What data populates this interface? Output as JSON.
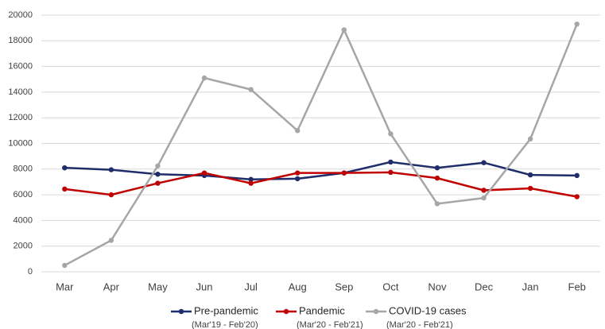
{
  "chart_data": {
    "type": "line",
    "categories": [
      "Mar",
      "Apr",
      "May",
      "Jun",
      "Jul",
      "Aug",
      "Sep",
      "Oct",
      "Nov",
      "Dec",
      "Jan",
      "Feb"
    ],
    "series": [
      {
        "name": "Pre-pandemic",
        "period": "(Mar'19 - Feb'20)",
        "color": "#1f2d6b",
        "values": [
          8100,
          7950,
          7600,
          7500,
          7200,
          7250,
          7700,
          8550,
          8100,
          8500,
          7550,
          7500
        ]
      },
      {
        "name": "Pandemic",
        "period": "(Mar'20 - Feb'21)",
        "color": "#c00000",
        "values": [
          6450,
          6000,
          6900,
          7700,
          6900,
          7700,
          7700,
          7750,
          7300,
          6350,
          6500,
          5850
        ]
      },
      {
        "name": "COVID-19 cases",
        "period": "(Mar'20 - Feb'21)",
        "color": "#a6a6a6",
        "values": [
          500,
          2450,
          8250,
          15100,
          14200,
          11000,
          18850,
          10750,
          5300,
          5750,
          10350,
          19300
        ]
      }
    ],
    "ylim": [
      0,
      20000
    ],
    "yticks": [
      0,
      2000,
      4000,
      6000,
      8000,
      10000,
      12000,
      14000,
      16000,
      18000,
      20000
    ],
    "grid": true,
    "legend": "bottom"
  }
}
